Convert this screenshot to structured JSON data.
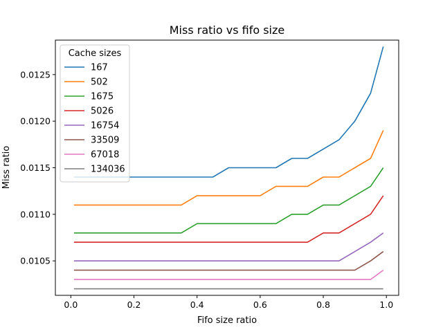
{
  "chart_data": {
    "type": "line",
    "title": "Miss ratio vs fifo size",
    "xlabel": "Fifo size ratio",
    "ylabel": "Miss ratio",
    "xlim": [
      -0.049,
      1.039
    ],
    "ylim": [
      0.01013,
      0.01287
    ],
    "xticks": [
      0.0,
      0.2,
      0.4,
      0.6,
      0.8,
      1.0
    ],
    "xtick_labels": [
      "0.0",
      "0.2",
      "0.4",
      "0.6",
      "0.8",
      "1.0"
    ],
    "yticks": [
      0.0105,
      0.011,
      0.0115,
      0.012,
      0.0125
    ],
    "ytick_labels": [
      "0.0105",
      "0.0110",
      "0.0115",
      "0.0120",
      "0.0125"
    ],
    "grid": false,
    "legend": {
      "title": "Cache sizes",
      "position": "upper-left"
    },
    "x": [
      0.01,
      0.05,
      0.1,
      0.15,
      0.2,
      0.25,
      0.3,
      0.35,
      0.4,
      0.45,
      0.5,
      0.55,
      0.6,
      0.65,
      0.7,
      0.75,
      0.8,
      0.85,
      0.9,
      0.95,
      0.99
    ],
    "series": [
      {
        "name": "167",
        "color": "#1f77b4",
        "values": [
          0.0114,
          0.0114,
          0.0114,
          0.0114,
          0.0114,
          0.0114,
          0.0114,
          0.0114,
          0.0114,
          0.0114,
          0.0115,
          0.0115,
          0.0115,
          0.0115,
          0.0116,
          0.0116,
          0.0117,
          0.0118,
          0.012,
          0.0123,
          0.0128
        ]
      },
      {
        "name": "502",
        "color": "#ff7f0e",
        "values": [
          0.0111,
          0.0111,
          0.0111,
          0.0111,
          0.0111,
          0.0111,
          0.0111,
          0.0111,
          0.0112,
          0.0112,
          0.0112,
          0.0112,
          0.0112,
          0.0113,
          0.0113,
          0.0113,
          0.0114,
          0.0114,
          0.0115,
          0.0116,
          0.0119
        ]
      },
      {
        "name": "1675",
        "color": "#2ca02c",
        "values": [
          0.0108,
          0.0108,
          0.0108,
          0.0108,
          0.0108,
          0.0108,
          0.0108,
          0.0108,
          0.0109,
          0.0109,
          0.0109,
          0.0109,
          0.0109,
          0.0109,
          0.011,
          0.011,
          0.0111,
          0.0111,
          0.0112,
          0.0113,
          0.0115
        ]
      },
      {
        "name": "5026",
        "color": "#d62728",
        "values": [
          0.0107,
          0.0107,
          0.0107,
          0.0107,
          0.0107,
          0.0107,
          0.0107,
          0.0107,
          0.0107,
          0.0107,
          0.0107,
          0.0107,
          0.0107,
          0.0107,
          0.0107,
          0.0107,
          0.0108,
          0.0108,
          0.0109,
          0.011,
          0.0112
        ]
      },
      {
        "name": "16754",
        "color": "#9467bd",
        "values": [
          0.0105,
          0.0105,
          0.0105,
          0.0105,
          0.0105,
          0.0105,
          0.0105,
          0.0105,
          0.0105,
          0.0105,
          0.0105,
          0.0105,
          0.0105,
          0.0105,
          0.0105,
          0.0105,
          0.0105,
          0.0105,
          0.0106,
          0.0107,
          0.0108
        ]
      },
      {
        "name": "33509",
        "color": "#8c564b",
        "values": [
          0.0104,
          0.0104,
          0.0104,
          0.0104,
          0.0104,
          0.0104,
          0.0104,
          0.0104,
          0.0104,
          0.0104,
          0.0104,
          0.0104,
          0.0104,
          0.0104,
          0.0104,
          0.0104,
          0.0104,
          0.0104,
          0.0104,
          0.0105,
          0.0106
        ]
      },
      {
        "name": "67018",
        "color": "#e377c2",
        "values": [
          0.0103,
          0.0103,
          0.0103,
          0.0103,
          0.0103,
          0.0103,
          0.0103,
          0.0103,
          0.0103,
          0.0103,
          0.0103,
          0.0103,
          0.0103,
          0.0103,
          0.0103,
          0.0103,
          0.0103,
          0.0103,
          0.0103,
          0.0103,
          0.0104
        ]
      },
      {
        "name": "134036",
        "color": "#7f7f7f",
        "values": [
          0.0102,
          0.0102,
          0.0102,
          0.0102,
          0.0102,
          0.0102,
          0.0102,
          0.0102,
          0.0102,
          0.0102,
          0.0102,
          0.0102,
          0.0102,
          0.0102,
          0.0102,
          0.0102,
          0.0102,
          0.0102,
          0.0102,
          0.0102,
          0.0102
        ]
      }
    ]
  }
}
